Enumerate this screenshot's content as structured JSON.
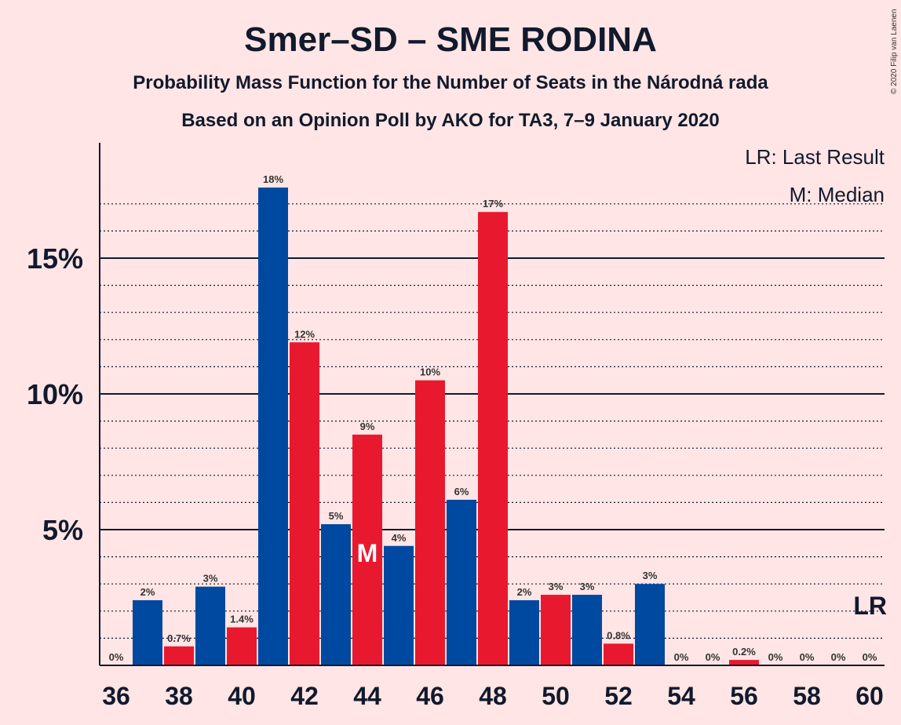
{
  "title": "Smer–SD – SME RODINA",
  "subtitle1": "Probability Mass Function for the Number of Seats in the Národná rada",
  "subtitle2": "Based on an Opinion Poll by AKO for TA3, 7–9 January 2020",
  "copyright": "© 2020 Filip van Laenen",
  "legend": {
    "last_result": "LR: Last Result",
    "median": "M: Median"
  },
  "median_mark": "M",
  "last_result_mark": "LR",
  "colors": {
    "background": "#ffe5e5",
    "blue": "#0049a0",
    "red": "#e8192f",
    "text": "#111a2c"
  },
  "chart_data": {
    "type": "bar",
    "seats": [
      36,
      37,
      38,
      39,
      40,
      41,
      42,
      43,
      44,
      45,
      46,
      47,
      48,
      49,
      50,
      51,
      52,
      53,
      54,
      55,
      56,
      57,
      58,
      59,
      60
    ],
    "values": [
      0,
      2.4,
      0.7,
      2.9,
      1.4,
      17.6,
      11.9,
      5.2,
      8.5,
      4.4,
      10.5,
      6.1,
      16.7,
      2.4,
      2.6,
      2.6,
      0.8,
      3.0,
      0,
      0,
      0.2,
      0,
      0,
      0,
      0
    ],
    "labels": [
      "0%",
      "2%",
      "0.7%",
      "3%",
      "1.4%",
      "18%",
      "12%",
      "5%",
      "9%",
      "4%",
      "10%",
      "6%",
      "17%",
      "2%",
      "3%",
      "3%",
      "0.8%",
      "3%",
      "0%",
      "0%",
      "0.2%",
      "0%",
      "0%",
      "0%",
      "0%"
    ],
    "xticks": [
      "36",
      "38",
      "40",
      "42",
      "44",
      "46",
      "48",
      "50",
      "52",
      "54",
      "56",
      "58",
      "60"
    ],
    "yticks": [
      "5%",
      "10%",
      "15%"
    ],
    "ylim": [
      0,
      18.5
    ],
    "median_seat": 44,
    "last_result_seat": 60
  }
}
